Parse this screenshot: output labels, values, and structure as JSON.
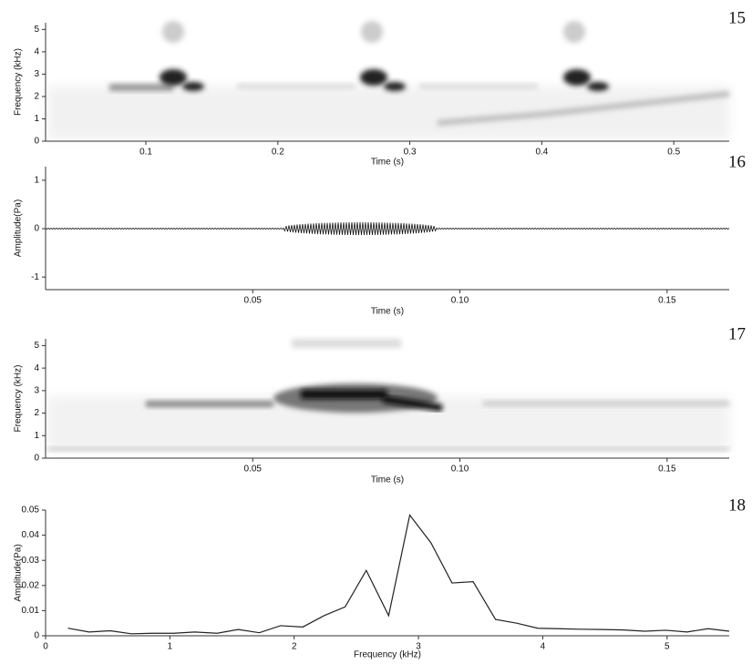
{
  "chart_data": [
    {
      "type": "spectrogram",
      "panel_label": "15",
      "xlabel": "Time (s)",
      "ylabel": "Frequency (kHz)",
      "xlim": [
        0.024,
        0.542
      ],
      "ylim": [
        0,
        5.3
      ],
      "xticks": [
        0.1,
        0.2,
        0.3,
        0.4,
        0.5
      ],
      "yticks": [
        0,
        1,
        2,
        3,
        4,
        5
      ]
    },
    {
      "type": "waveform",
      "panel_label": "16",
      "xlabel": "Time (s)",
      "ylabel": "Amplitude(Pa)",
      "xlim": [
        0,
        0.165
      ],
      "ylim": [
        -1.26,
        1.28
      ],
      "xticks": [
        0.05,
        {
          "value": 0.1,
          "label": "0.10"
        },
        0.15
      ],
      "yticks": [
        -1,
        0,
        1
      ]
    },
    {
      "type": "spectrogram",
      "panel_label": "17",
      "xlabel": "Time (s)",
      "ylabel": "Frequency (kHz)",
      "xlim": [
        0,
        0.165
      ],
      "ylim": [
        0,
        5.3
      ],
      "xticks": [
        0.05,
        {
          "value": 0.1,
          "label": "0.10"
        },
        0.15
      ],
      "yticks": [
        0,
        1,
        2,
        3,
        4,
        5
      ]
    },
    {
      "type": "line",
      "panel_label": "18",
      "xlabel": "Frequency (kHz)",
      "ylabel": "Amplitude(Pa)",
      "xlim": [
        0,
        5.5
      ],
      "ylim": [
        0,
        0.05
      ],
      "xticks": [
        0,
        1,
        2,
        3,
        4,
        5
      ],
      "yticks": [
        0,
        0.01,
        0.02,
        0.03,
        0.04,
        0.05
      ],
      "color": "#222222",
      "x": [
        0.18,
        0.35,
        0.52,
        0.69,
        0.86,
        1.03,
        1.2,
        1.38,
        1.55,
        1.72,
        1.89,
        2.07,
        2.24,
        2.41,
        2.58,
        2.76,
        2.93,
        3.1,
        3.27,
        3.44,
        3.62,
        3.79,
        3.96,
        4.13,
        4.3,
        4.48,
        4.65,
        4.82,
        4.99,
        5.16,
        5.33,
        5.5
      ],
      "values": [
        0.003,
        0.0015,
        0.002,
        0.0008,
        0.001,
        0.001,
        0.0015,
        0.001,
        0.0025,
        0.0012,
        0.004,
        0.0035,
        0.008,
        0.0115,
        0.026,
        0.008,
        0.048,
        0.037,
        0.021,
        0.0215,
        0.0065,
        0.005,
        0.003,
        0.0028,
        0.0026,
        0.0025,
        0.0023,
        0.0018,
        0.0022,
        0.0015,
        0.0028,
        0.0018
      ]
    }
  ]
}
